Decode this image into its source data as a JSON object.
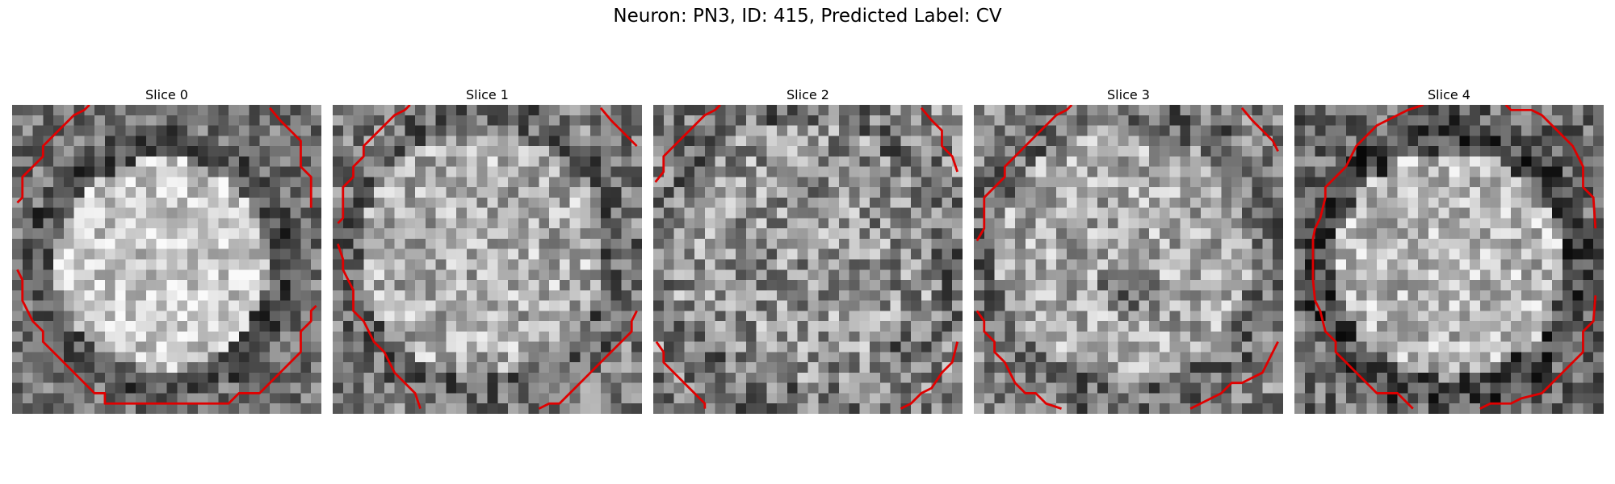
{
  "figure": {
    "title": "Neuron: PN3, ID: 415, Predicted Label: CV",
    "slices": [
      {
        "label": "Slice 0"
      },
      {
        "label": "Slice 1"
      },
      {
        "label": "Slice 2"
      },
      {
        "label": "Slice 3"
      },
      {
        "label": "Slice 4"
      }
    ],
    "colors": {
      "contour": "#e00000",
      "background": "#ffffff"
    },
    "colormap": "gray"
  }
}
